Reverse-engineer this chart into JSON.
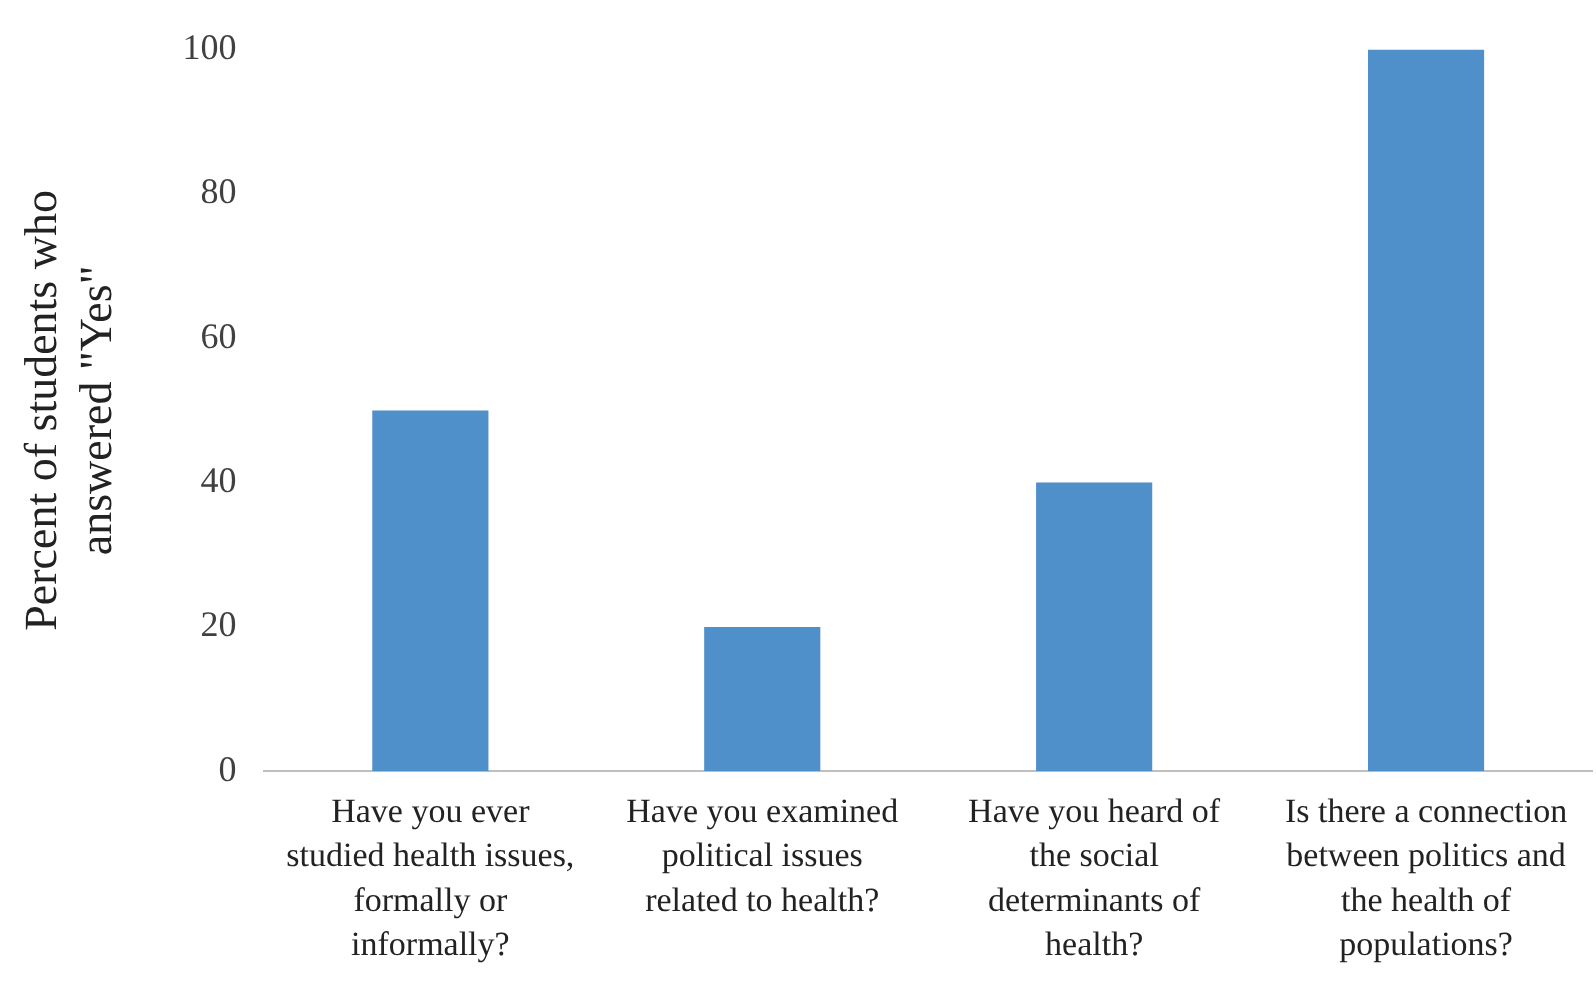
{
  "chart_data": {
    "type": "bar",
    "ylabel": "Percent of students who answered \"Yes\"",
    "categories": [
      "Have you ever studied health issues, formally or informally?",
      "Have you examined political issues related to health?",
      "Have you heard of the social determinants of health?",
      "Is there a connection between politics and the health of populations?"
    ],
    "values": [
      50,
      20,
      40,
      100
    ],
    "color": "#4f8fca",
    "ylim": [
      0,
      100
    ],
    "yticks": [
      0,
      20,
      40,
      60,
      80,
      100
    ],
    "grid": false,
    "legend": false
  }
}
